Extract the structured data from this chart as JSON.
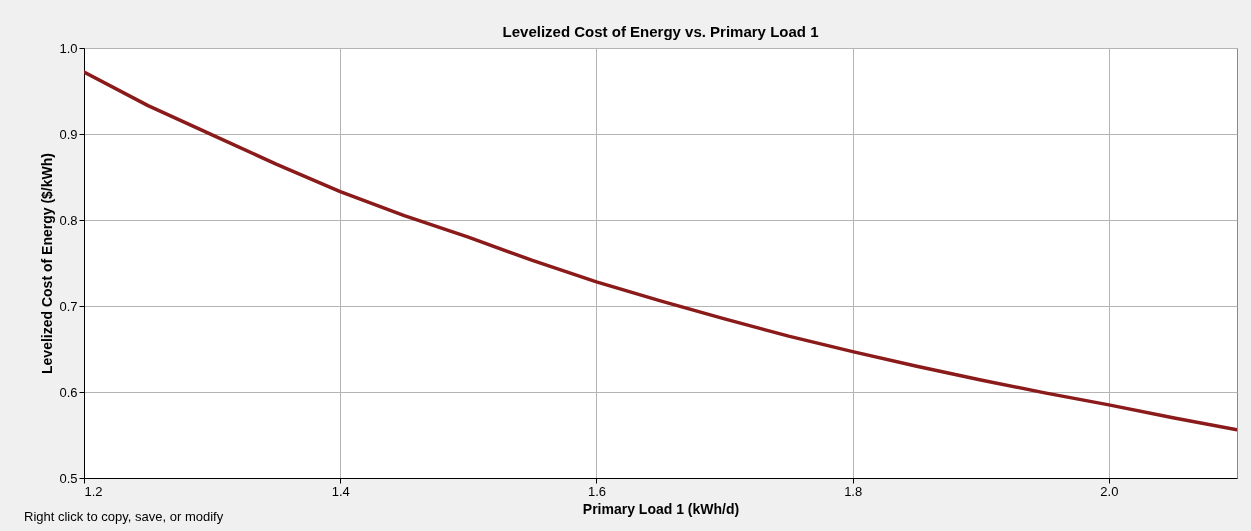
{
  "chart_data": {
    "type": "line",
    "title": "Levelized Cost of Energy vs. Primary Load 1",
    "xlabel": "Primary Load 1 (kWh/d)",
    "ylabel": "Levelized Cost of Energy ($/kWh)",
    "annotations": [
      "Right click to copy, save, or modify"
    ],
    "x": [
      1.2,
      1.25,
      1.3,
      1.35,
      1.4,
      1.45,
      1.5,
      1.55,
      1.6,
      1.65,
      1.7,
      1.75,
      1.8,
      1.85,
      1.9,
      1.95,
      2.0,
      2.05,
      2.1
    ],
    "series": [
      {
        "color": "#8b1a1a",
        "values": [
          0.972,
          0.933,
          0.899,
          0.865,
          0.833,
          0.805,
          0.78,
          0.753,
          0.728,
          0.706,
          0.685,
          0.665,
          0.647,
          0.63,
          0.614,
          0.599,
          0.585,
          0.57,
          0.556
        ]
      }
    ],
    "xlim": [
      1.2,
      2.1
    ],
    "xticks": [
      1.2,
      1.4,
      1.6,
      1.8,
      {
        "value": 2,
        "label": "2.0"
      }
    ],
    "ylim": [
      0.5,
      1.0
    ],
    "yticks": [
      0.5,
      0.6,
      0.7,
      0.8,
      0.9,
      {
        "value": 1,
        "label": "1.0"
      }
    ],
    "grid": true,
    "legend": false,
    "marker": "none",
    "line_style": "solid"
  }
}
